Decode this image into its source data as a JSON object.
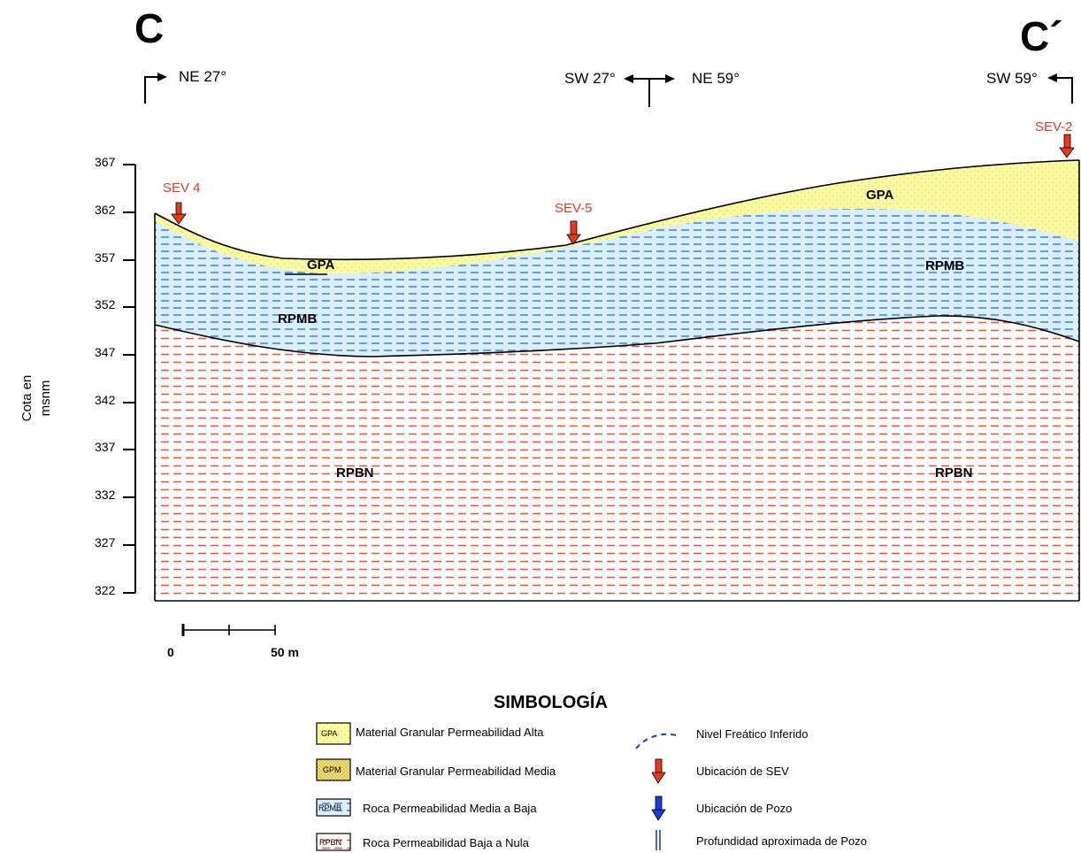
{
  "section": {
    "start_label": "C",
    "end_label": "C´",
    "directions": [
      "NE 27°",
      "SW 27°",
      "NE 59°",
      "SW 59°"
    ]
  },
  "axis": {
    "title_line1": "Cota en",
    "title_line2": "msnm",
    "ticks": [
      "367",
      "362",
      "357",
      "352",
      "347",
      "342",
      "337",
      "332",
      "327",
      "322"
    ]
  },
  "sev_points": [
    {
      "label": "SEV 4",
      "elevation": 362
    },
    {
      "label": "SEV-5",
      "elevation": 358.5
    },
    {
      "label": "SEV-2",
      "elevation": 367.5
    }
  ],
  "layers": {
    "gpa_left": "GPA",
    "gpa_right": "GPA",
    "rpmb_left": "RPMB",
    "rpmb_right": "RPMB",
    "rpbn_left": "RPBN",
    "rpbn_right": "RPBN"
  },
  "scale": {
    "start": "0",
    "end": "50 m"
  },
  "legend": {
    "title": "SIMBOLOGÍA",
    "items": [
      {
        "code": "GPA",
        "label": "Material Granular Permeabilidad Alta"
      },
      {
        "code": "GPM",
        "label": "Material Granular Permeabilidad Media"
      },
      {
        "code": "RPMB",
        "label": "Roca Permeabilidad Media a Baja"
      },
      {
        "code": "RPBN",
        "label": "Roca Permeabilidad Baja a Nula"
      },
      {
        "code": "",
        "label": "Nivel Freático Inferido"
      },
      {
        "code": "",
        "label": "Ubicación de SEV"
      },
      {
        "code": "",
        "label": "Ubicación de Pozo"
      },
      {
        "code": "",
        "label": "Profundidad aproximada de Pozo"
      }
    ]
  },
  "colors": {
    "gpa_fill": "#fafaa0",
    "rpmb_fill": "#dbeefb",
    "rpmb_dash": "#3c8ce6",
    "rpbn_fill": "#ffffff",
    "rpbn_dash": "#f05a3c",
    "sev_red": "#e83a1a",
    "pozo_blue": "#1a3cdc"
  }
}
